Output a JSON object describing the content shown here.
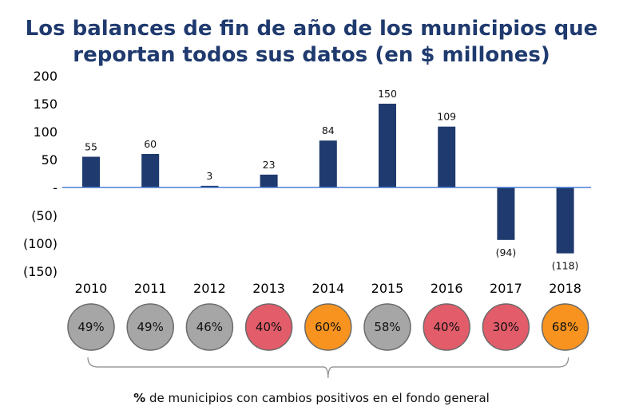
{
  "chart_data": {
    "type": "bar",
    "title_line1": "Los balances de fin de año de los municipios que",
    "title_line2": "reportan todos sus datos (en $ millones)",
    "categories": [
      "2010",
      "2011",
      "2012",
      "2013",
      "2014",
      "2015",
      "2016",
      "2017",
      "2018"
    ],
    "values": [
      55,
      60,
      3,
      23,
      84,
      150,
      109,
      -94,
      -118
    ],
    "data_labels": [
      "55",
      "60",
      "3",
      "23",
      "84",
      "150",
      "109",
      "(94)",
      "(118)"
    ],
    "ylim": [
      -150,
      200
    ],
    "yticks": [
      200,
      150,
      100,
      50,
      0,
      -50,
      -100,
      -150
    ],
    "ytick_labels": [
      "200",
      "150",
      "100",
      "50",
      "-",
      "(50)",
      "(100)",
      "(150)"
    ],
    "bar_color": "#1f3a6e",
    "axis_color": "#4a7fd4",
    "percent_positive": [
      "49%",
      "49%",
      "46%",
      "40%",
      "60%",
      "58%",
      "40%",
      "30%",
      "68%"
    ],
    "percent_colors": [
      "#a6a6a6",
      "#a6a6a6",
      "#a6a6a6",
      "#e25c6a",
      "#f7931e",
      "#a6a6a6",
      "#e25c6a",
      "#e25c6a",
      "#f7931e"
    ],
    "footnote_bold": "%",
    "footnote_rest": " de municipios con cambios positivos en el fondo general"
  }
}
